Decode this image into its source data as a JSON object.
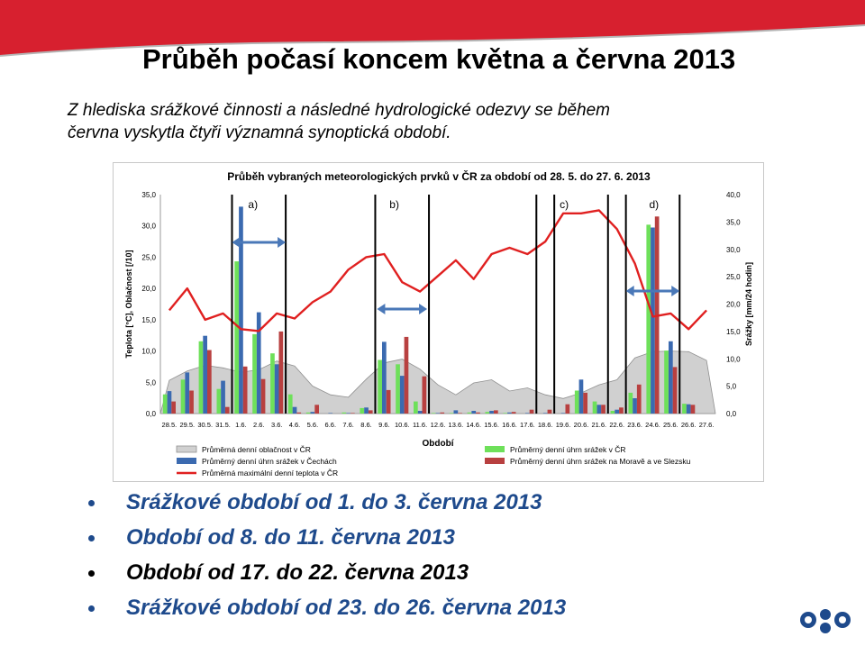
{
  "slide": {
    "title": "Průběh počasí koncem května a června 2013",
    "intro": "Z hlediska srážkové činnosti a následné hydrologické odezvy se během června vyskytla čtyři významná synoptická období.",
    "bullets": [
      {
        "text": "Srážkové období od 1. do 3. června 2013",
        "style": "blue-italic"
      },
      {
        "text": "Období od 8. do 11. června 2013",
        "style": "blue-italic"
      },
      {
        "text": "Období od 17. do 22. června 2013",
        "style": "black-italic"
      },
      {
        "text": "Srážkové období od 23. do 26. června 2013",
        "style": "blue-italic"
      }
    ],
    "logo_icon": "chmi-wave-logo-icon",
    "colors": {
      "banner": "#d7202f",
      "bullet_text": "#1e4a8c"
    }
  },
  "chart_data": {
    "type": "bar-line-area",
    "title": "Průběh vybraných meteorologických prvků v ČR za období od 28. 5. do 27. 6. 2013",
    "xlabel": "Období",
    "ylabel_left": "Teplota [°C], Oblačnost [/10]",
    "ylabel_right": "Srážky [mm/24 hodin]",
    "ylim_left": [
      0,
      35
    ],
    "ylim_right": [
      0,
      40
    ],
    "left_ticks": [
      "0,0",
      "5,0",
      "10,0",
      "15,0",
      "20,0",
      "25,0",
      "30,0",
      "35,0"
    ],
    "right_ticks": [
      "0,0",
      "5,0",
      "10,0",
      "15,0",
      "20,0",
      "25,0",
      "30,0",
      "35,0",
      "40,0"
    ],
    "categories": [
      "28.5.",
      "29.5.",
      "30.5.",
      "31.5.",
      "1.6.",
      "2.6.",
      "3.6.",
      "4.6.",
      "5.6.",
      "6.6.",
      "7.6.",
      "8.6.",
      "9.6.",
      "10.6.",
      "11.6.",
      "12.6.",
      "13.6.",
      "14.6.",
      "15.6.",
      "16.6.",
      "17.6.",
      "18.6.",
      "19.6.",
      "20.6.",
      "21.6.",
      "22.6.",
      "23.6.",
      "24.6.",
      "25.6.",
      "26.6.",
      "27.6."
    ],
    "period_labels": [
      "a)",
      "b)",
      "c)",
      "d)"
    ],
    "series": [
      {
        "name": "Průměrná denní oblačnost v ČR",
        "kind": "area",
        "axis": "left",
        "color": "#d0d0d0",
        "values": [
          5.3,
          6.8,
          7.7,
          7.3,
          6.6,
          7.0,
          8.4,
          7.6,
          4.4,
          3.0,
          2.6,
          5.5,
          8.1,
          8.7,
          7.1,
          4.6,
          3.0,
          4.9,
          5.4,
          3.6,
          4.1,
          3.0,
          2.4,
          3.3,
          4.6,
          5.4,
          8.9,
          9.9,
          10.0,
          9.9,
          8.5
        ]
      },
      {
        "name": "Průměrný denní úhrn srážek v ČR",
        "kind": "bar",
        "axis": "right",
        "color": "#6ee05a",
        "values": [
          3.5,
          6.2,
          13.2,
          4.5,
          27.8,
          14.5,
          11.0,
          3.5,
          0.2,
          0.0,
          0.2,
          1.0,
          9.8,
          9.0,
          2.2,
          0.1,
          0.1,
          0.2,
          0.3,
          0.1,
          0.0,
          0.0,
          0.0,
          4.2,
          2.2,
          0.5,
          3.8,
          34.5,
          11.5,
          1.8,
          0.0
        ]
      },
      {
        "name": "Průměrný denní úhrn srážek v Čechách",
        "kind": "bar",
        "axis": "right",
        "color": "#3b6ab0",
        "values": [
          4.1,
          7.5,
          14.2,
          6.0,
          37.8,
          18.5,
          9.0,
          1.2,
          0.3,
          0.1,
          0.1,
          1.1,
          13.1,
          6.9,
          0.5,
          0.1,
          0.6,
          0.5,
          0.5,
          0.2,
          0.1,
          0.1,
          0.1,
          6.2,
          1.6,
          0.7,
          2.8,
          34.0,
          13.2,
          1.7,
          0.0
        ]
      },
      {
        "name": "Průměrný denní úhrn srážek na Moravě a ve Slezsku",
        "kind": "bar",
        "axis": "right",
        "color": "#b84040",
        "values": [
          2.2,
          4.2,
          11.6,
          1.2,
          8.6,
          6.3,
          15.0,
          0.2,
          1.6,
          0.0,
          0.1,
          0.6,
          4.3,
          14.0,
          6.8,
          0.2,
          0.1,
          0.2,
          0.6,
          0.3,
          0.7,
          0.7,
          1.7,
          3.8,
          1.6,
          1.1,
          5.3,
          36.0,
          8.5,
          1.6,
          0.0
        ]
      },
      {
        "name": "Průměrná maximální denní teplota v ČR",
        "kind": "line",
        "axis": "left",
        "color": "#e02020",
        "values": [
          16.5,
          20.0,
          15.0,
          16.0,
          13.5,
          13.2,
          16.0,
          15.2,
          17.8,
          19.5,
          23.0,
          25.0,
          25.5,
          21.0,
          19.5,
          22.0,
          24.5,
          21.5,
          25.5,
          26.5,
          25.5,
          27.5,
          32.0,
          32.0,
          32.5,
          29.5,
          24.0,
          15.5,
          16.0,
          13.5,
          16.5
        ]
      }
    ]
  }
}
